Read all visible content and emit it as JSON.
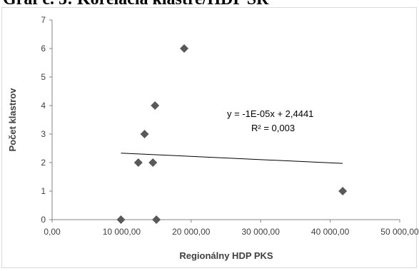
{
  "caption": "Graf č. 5: Korelácia klastre/HDP SR",
  "chart_data": {
    "type": "scatter",
    "title": "",
    "xlabel": "Regionálny HDP PKS",
    "ylabel": "Počet klastrov",
    "xlim": [
      0,
      50000
    ],
    "ylim": [
      0,
      7
    ],
    "x_ticks": [
      0,
      10000,
      20000,
      30000,
      40000,
      50000
    ],
    "x_tick_labels": [
      "0,00",
      "10 000,00",
      "20 000,00",
      "30 000,00",
      "40 000,00",
      "50 000,00"
    ],
    "y_ticks": [
      0,
      1,
      2,
      3,
      4,
      5,
      6,
      7
    ],
    "y_tick_labels": [
      "0",
      "1",
      "2",
      "3",
      "4",
      "5",
      "6",
      "7"
    ],
    "grid": false,
    "marker": "diamond",
    "marker_color": "#595959",
    "points": [
      {
        "x": 9900,
        "y": 0
      },
      {
        "x": 15000,
        "y": 0
      },
      {
        "x": 12400,
        "y": 2
      },
      {
        "x": 14500,
        "y": 2
      },
      {
        "x": 13300,
        "y": 3
      },
      {
        "x": 14800,
        "y": 4
      },
      {
        "x": 19000,
        "y": 6
      },
      {
        "x": 41800,
        "y": 1
      }
    ],
    "trendline": {
      "x_range": [
        9900,
        41800
      ],
      "slope": -1.13e-05,
      "intercept": 2.4441,
      "color": "#000000"
    },
    "annotations": {
      "equation": "y = -1E-05x + 2,4441",
      "r_squared": "R² = 0,003"
    }
  }
}
